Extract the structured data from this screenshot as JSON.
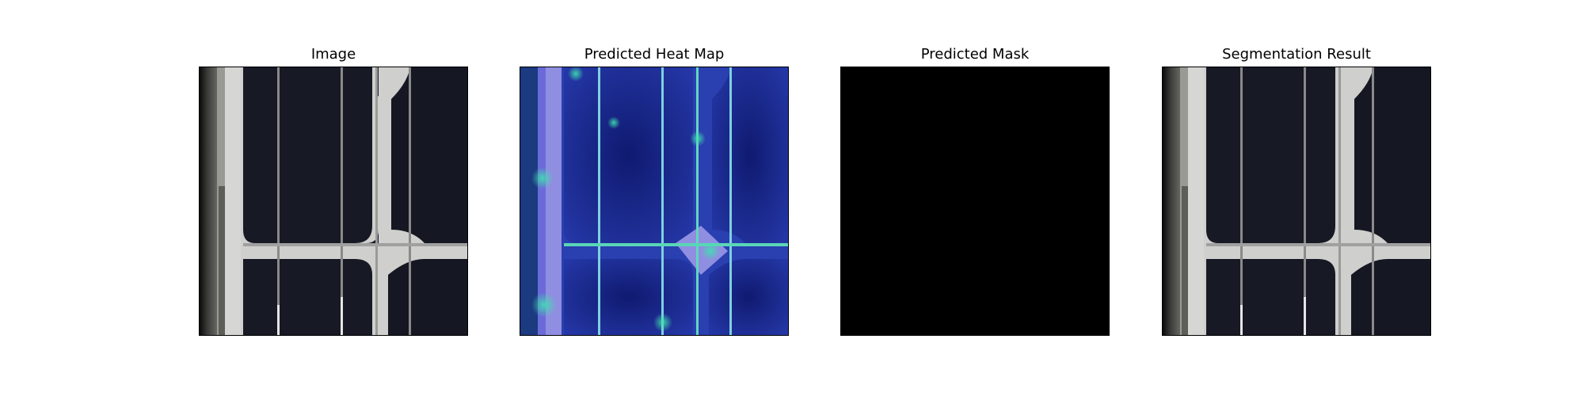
{
  "figure": {
    "panels": [
      {
        "title": "Image"
      },
      {
        "title": "Predicted Heat Map"
      },
      {
        "title": "Predicted Mask"
      },
      {
        "title": "Segmentation Result"
      }
    ]
  },
  "colors": {
    "background": "#ffffff",
    "cell_dark": "#14151f",
    "cell_gap_gray": "#c9c9c9",
    "frame_edge": "#2a2a2a",
    "heatmap_base": "#1a2a8c",
    "heatmap_hot": "#38d0b4",
    "heatmap_edge_light": "#8f8ee0",
    "mask": "#000000"
  }
}
